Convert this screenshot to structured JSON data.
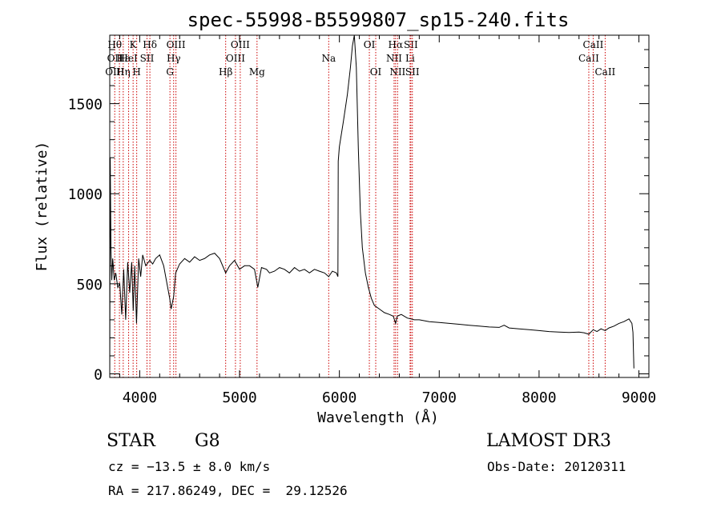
{
  "chart_data": {
    "type": "line",
    "title": "spec-55998-B5599807_sp15-240.fits",
    "xlabel": "Wavelength (Å)",
    "ylabel": "Flux (relative)",
    "xlim": [
      3700,
      9100
    ],
    "ylim": [
      -20,
      1880
    ],
    "xticks": [
      4000,
      5000,
      6000,
      7000,
      8000,
      9000
    ],
    "yticks": [
      0,
      500,
      1000,
      1500
    ],
    "xtick_labels": [
      "4000",
      "5000",
      "6000",
      "7000",
      "8000",
      "9000"
    ],
    "ytick_labels": [
      "0",
      "500",
      "1000",
      "1500"
    ],
    "series": [
      {
        "name": "flux",
        "color": "#000000",
        "x": [
          3700,
          3705,
          3712,
          3720,
          3730,
          3745,
          3760,
          3780,
          3800,
          3820,
          3840,
          3860,
          3880,
          3900,
          3920,
          3935,
          3950,
          3968,
          3990,
          4010,
          4030,
          4060,
          4100,
          4130,
          4160,
          4200,
          4240,
          4280,
          4300,
          4315,
          4340,
          4360,
          4400,
          4450,
          4500,
          4550,
          4600,
          4650,
          4700,
          4750,
          4800,
          4861,
          4900,
          4950,
          5000,
          5050,
          5100,
          5150,
          5183,
          5220,
          5270,
          5300,
          5350,
          5400,
          5450,
          5500,
          5550,
          5600,
          5650,
          5700,
          5750,
          5800,
          5850,
          5893,
          5930,
          5970,
          5985,
          5988,
          6000,
          6040,
          6080,
          6110,
          6130,
          6150,
          6170,
          6190,
          6210,
          6230,
          6260,
          6290,
          6320,
          6350,
          6400,
          6450,
          6500,
          6540,
          6563,
          6580,
          6620,
          6680,
          6750,
          6800,
          6900,
          7000,
          7100,
          7200,
          7300,
          7400,
          7500,
          7600,
          7650,
          7700,
          7800,
          7900,
          8000,
          8100,
          8200,
          8300,
          8400,
          8450,
          8498,
          8542,
          8580,
          8620,
          8662,
          8700,
          8750,
          8800,
          8850,
          8900,
          8930,
          8940,
          8950
        ],
        "values": [
          0,
          1200,
          700,
          520,
          640,
          520,
          560,
          480,
          500,
          330,
          580,
          300,
          620,
          450,
          620,
          350,
          600,
          280,
          640,
          540,
          660,
          600,
          630,
          610,
          640,
          660,
          600,
          480,
          420,
          360,
          430,
          560,
          610,
          640,
          620,
          650,
          630,
          640,
          660,
          670,
          640,
          560,
          600,
          630,
          580,
          600,
          600,
          580,
          480,
          590,
          580,
          560,
          570,
          590,
          580,
          560,
          590,
          570,
          580,
          560,
          580,
          570,
          560,
          540,
          570,
          560,
          540,
          1180,
          1260,
          1400,
          1550,
          1700,
          1820,
          1880,
          1700,
          1250,
          900,
          700,
          560,
          480,
          420,
          380,
          360,
          340,
          330,
          320,
          280,
          320,
          330,
          310,
          300,
          300,
          290,
          285,
          280,
          275,
          270,
          265,
          260,
          258,
          270,
          255,
          250,
          245,
          240,
          235,
          232,
          230,
          232,
          228,
          220,
          245,
          235,
          250,
          240,
          255,
          265,
          280,
          290,
          305,
          280,
          230,
          30
        ]
      }
    ],
    "line_markers": [
      {
        "wl": 3750,
        "labels": [
          {
            "text": "Hθ",
            "row": 1
          },
          {
            "text": "OII",
            "row": 2
          },
          {
            "text": "OIII",
            "row": 3
          }
        ]
      },
      {
        "wl": 3797,
        "labels": []
      },
      {
        "wl": 3835,
        "labels": [
          {
            "text": "Hε",
            "row": 2
          },
          {
            "text": "Hη",
            "row": 3
          }
        ]
      },
      {
        "wl": 3889,
        "labels": [
          {
            "text": "HeI",
            "row": 2
          }
        ]
      },
      {
        "wl": 3934,
        "labels": [
          {
            "text": "K",
            "row": 1
          }
        ]
      },
      {
        "wl": 3970,
        "labels": [
          {
            "text": "H",
            "row": 3
          }
        ]
      },
      {
        "wl": 4073,
        "labels": [
          {
            "text": "SII",
            "row": 2
          }
        ]
      },
      {
        "wl": 4102,
        "labels": [
          {
            "text": "Hδ",
            "row": 1
          }
        ]
      },
      {
        "wl": 4303,
        "labels": [
          {
            "text": "G",
            "row": 3
          }
        ]
      },
      {
        "wl": 4340,
        "labels": [
          {
            "text": "Hγ",
            "row": 2
          }
        ]
      },
      {
        "wl": 4363,
        "labels": [
          {
            "text": "OIII",
            "row": 1
          }
        ]
      },
      {
        "wl": 4861,
        "labels": [
          {
            "text": "Hβ",
            "row": 3
          }
        ]
      },
      {
        "wl": 4959,
        "labels": [
          {
            "text": "OIII",
            "row": 2
          }
        ]
      },
      {
        "wl": 5007,
        "labels": [
          {
            "text": "OIII",
            "row": 1
          }
        ]
      },
      {
        "wl": 5175,
        "labels": [
          {
            "text": "Mg",
            "row": 3
          }
        ]
      },
      {
        "wl": 5893,
        "labels": [
          {
            "text": "Na",
            "row": 2
          }
        ]
      },
      {
        "wl": 6300,
        "labels": [
          {
            "text": "OI",
            "row": 1
          }
        ]
      },
      {
        "wl": 6364,
        "labels": [
          {
            "text": "OI",
            "row": 3
          }
        ]
      },
      {
        "wl": 6548,
        "labels": [
          {
            "text": "NII",
            "row": 2
          }
        ]
      },
      {
        "wl": 6563,
        "labels": [
          {
            "text": "Hα",
            "row": 1
          }
        ]
      },
      {
        "wl": 6583,
        "labels": [
          {
            "text": "NII",
            "row": 3
          }
        ]
      },
      {
        "wl": 6708,
        "labels": [
          {
            "text": "Li",
            "row": 2
          }
        ]
      },
      {
        "wl": 6716,
        "labels": [
          {
            "text": "SII",
            "row": 1
          }
        ]
      },
      {
        "wl": 6731,
        "labels": [
          {
            "text": "SII",
            "row": 3
          }
        ]
      },
      {
        "wl": 8498,
        "labels": [
          {
            "text": "CaII",
            "row": 2
          }
        ]
      },
      {
        "wl": 8542,
        "labels": [
          {
            "text": "CaII",
            "row": 1
          }
        ]
      },
      {
        "wl": 8662,
        "labels": [
          {
            "text": "CaII",
            "row": 3
          }
        ]
      }
    ],
    "marker_color": "#cc0000"
  },
  "footer": {
    "object_class": "STAR",
    "subclass": "G8",
    "survey": "LAMOST DR3",
    "redshift": "cz = −13.5 ± 8.0 km/s",
    "obs_date": "Obs-Date: 20120311",
    "coords": "RA = 217.86249, DEC =  29.12526"
  }
}
